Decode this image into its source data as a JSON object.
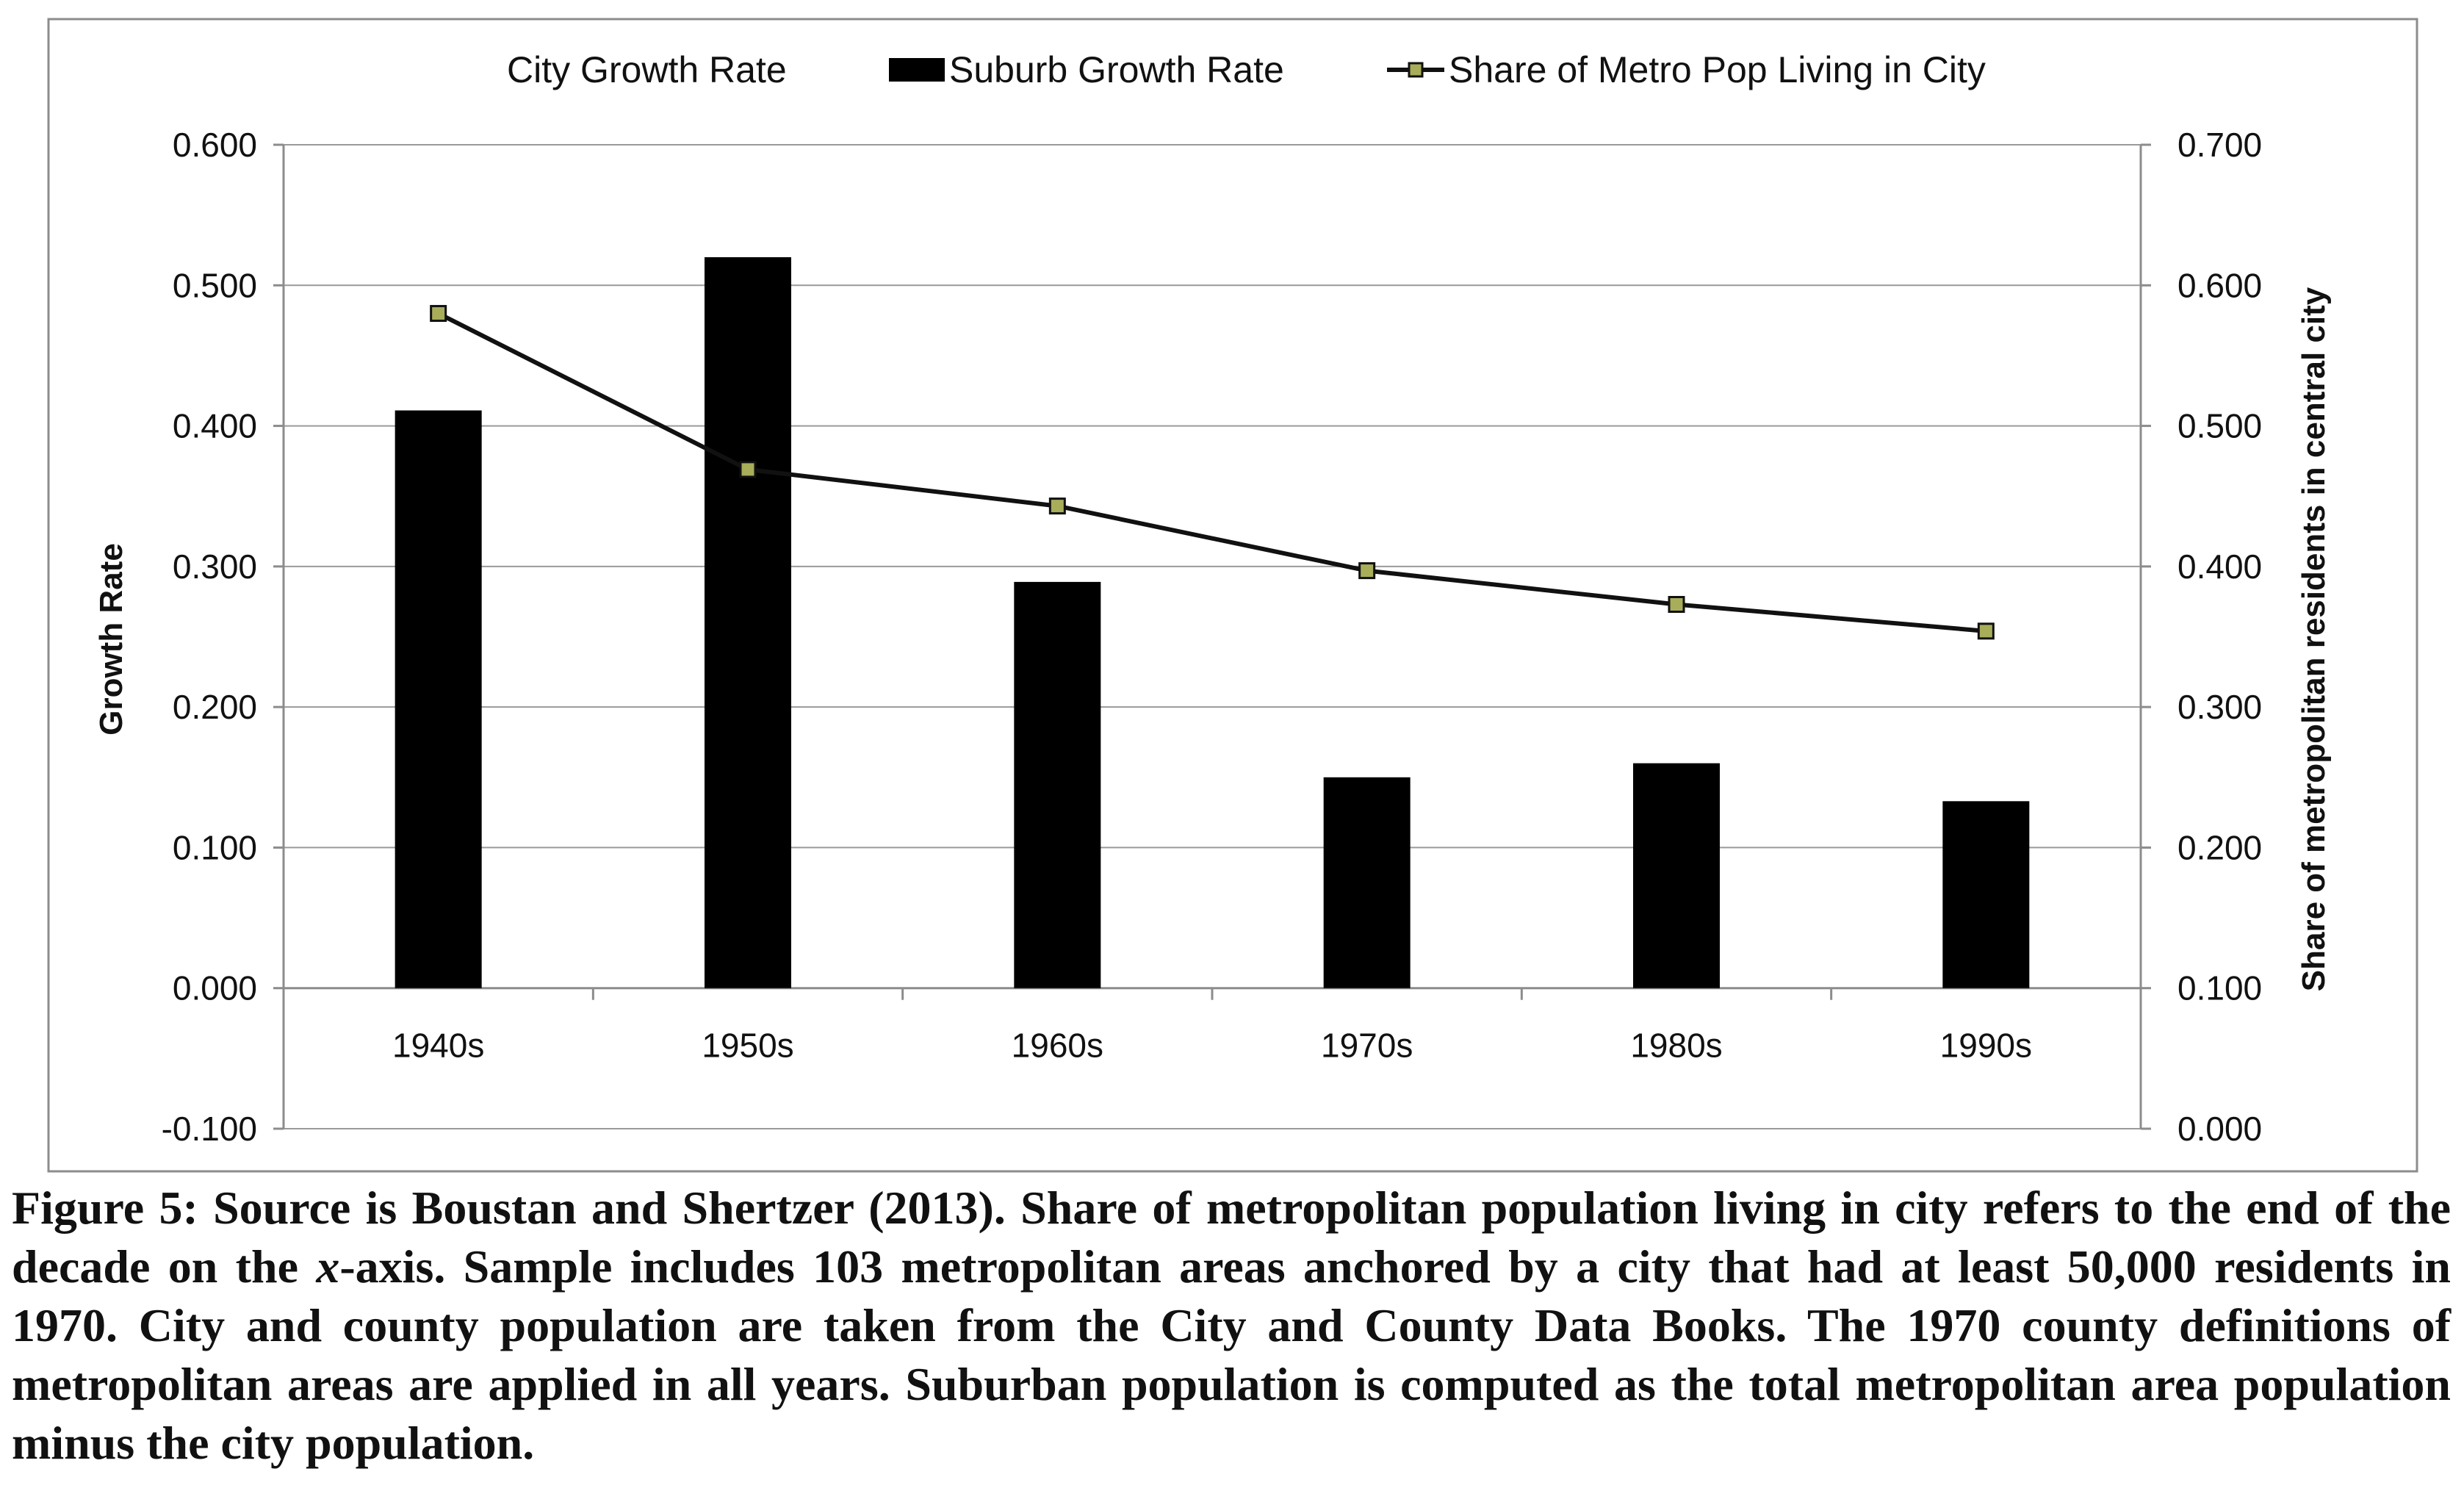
{
  "chart_data": {
    "type": "bar",
    "categories": [
      "1940s",
      "1950s",
      "1960s",
      "1970s",
      "1980s",
      "1990s"
    ],
    "series": [
      {
        "name": "City Growth Rate",
        "kind": "bar",
        "axis": "left",
        "color": "#ffffff",
        "values": [
          0,
          0,
          0,
          0,
          0,
          0
        ]
      },
      {
        "name": "Suburb Growth Rate",
        "kind": "bar",
        "axis": "left",
        "color": "#000000",
        "values": [
          0.411,
          0.52,
          0.289,
          0.15,
          0.16,
          0.133
        ]
      },
      {
        "name": "Share of Metro Pop Living in City",
        "kind": "line",
        "axis": "right",
        "color": "#111111",
        "marker_color": "#a8ad5a",
        "values": [
          0.58,
          0.469,
          0.443,
          0.397,
          0.373,
          0.354
        ]
      }
    ],
    "ylabel": "Growth Rate",
    "ylim": [
      -0.1,
      0.6
    ],
    "yticks": [
      "-0.100",
      "0.000",
      "0.100",
      "0.200",
      "0.300",
      "0.400",
      "0.500",
      "0.600"
    ],
    "y2label": "Share of metropolitan residents in central city",
    "y2lim": [
      0.0,
      0.7
    ],
    "y2ticks": [
      "0.000",
      "0.100",
      "0.200",
      "0.300",
      "0.400",
      "0.500",
      "0.600",
      "0.700"
    ],
    "grid": true,
    "legend_position": "top"
  },
  "caption": {
    "part1": "Figure 5: Source is Boustan and Shertzer (2013). Share of metropolitan population living in city refers to the end of the decade on the ",
    "x_italic": "x",
    "part2": "-axis. Sample includes 103 metropolitan areas anchored by a city that had at least 50,000 residents in 1970. City and county population are taken from the City and County Data Books. The 1970 county definitions of metropolitan areas are applied in all years. Suburban population is computed as the total metropolitan area population minus the city population."
  }
}
